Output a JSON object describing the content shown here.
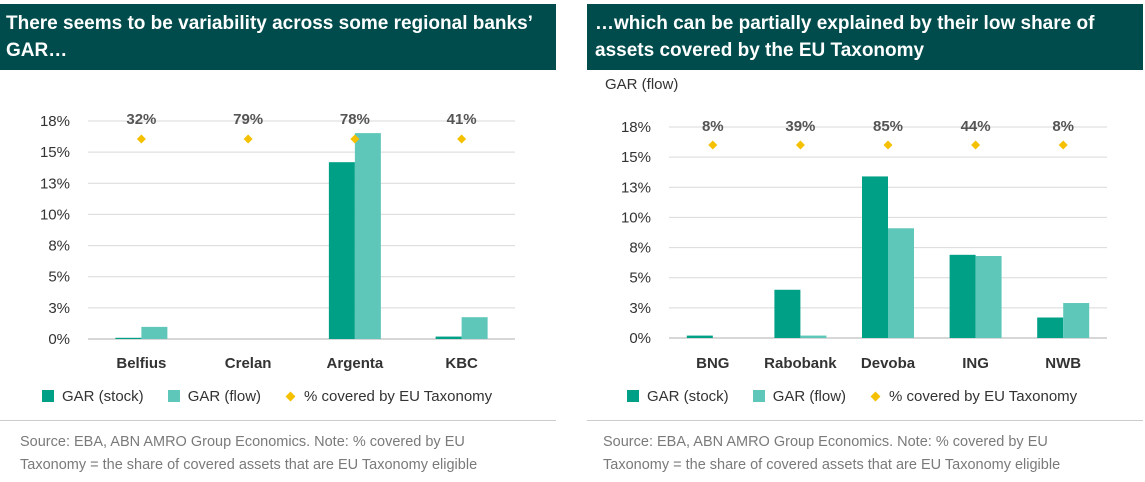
{
  "panels": [
    {
      "title": "There seems to be variability across some regional banks’ GAR…",
      "ylabel": "",
      "source": [
        "Source: EBA, ABN AMRO Group Economics. Note: % covered by EU",
        "Taxonomy =   the share of covered assets that are EU Taxonomy eligible"
      ],
      "legend": {
        "stock": "GAR (stock)",
        "flow": "GAR (flow)",
        "coverage": "% covered by EU Taxonomy"
      }
    },
    {
      "title": "…which can be partially explained by their low share of assets covered by the EU Taxonomy",
      "ylabel": "GAR (flow)",
      "source": [
        "Source: EBA, ABN AMRO Group Economics. Note: % covered by EU",
        "Taxonomy =   the share of covered assets that are EU Taxonomy eligible"
      ],
      "legend": {
        "stock": "GAR (stock)",
        "flow": "GAR (flow)",
        "coverage": "% covered by EU Taxonomy"
      }
    }
  ],
  "colors": {
    "stock": "#00a087",
    "flow": "#5ec7b9",
    "coverage": "#f5c000",
    "title_bg": "#004c4c"
  },
  "chart_data": [
    {
      "type": "bar",
      "categories": [
        "Belfius",
        "Crelan",
        "Argenta",
        "KBC"
      ],
      "series": [
        {
          "name": "GAR (stock)",
          "values": [
            0.1,
            0.0,
            14.6,
            0.2
          ]
        },
        {
          "name": "GAR (flow)",
          "values": [
            1.0,
            0.0,
            17.0,
            1.8
          ]
        }
      ],
      "coverage": {
        "name": "% covered by EU Taxonomy",
        "labels": [
          "32%",
          "79%",
          "78%",
          "41%"
        ]
      },
      "yticks": [
        "0%",
        "3%",
        "5%",
        "8%",
        "10%",
        "13%",
        "15%",
        "18%"
      ],
      "ylim": [
        0,
        18
      ],
      "legend_position": "bottom"
    },
    {
      "type": "bar",
      "categories": [
        "BNG",
        "Rabobank",
        "Devoba",
        "ING",
        "NWB"
      ],
      "series": [
        {
          "name": "GAR (stock)",
          "values": [
            0.2,
            4.0,
            13.4,
            6.9,
            1.7
          ]
        },
        {
          "name": "GAR (flow)",
          "values": [
            0.0,
            0.2,
            9.1,
            6.8,
            2.9
          ]
        }
      ],
      "coverage": {
        "name": "% covered by EU Taxonomy",
        "labels": [
          "8%",
          "39%",
          "85%",
          "44%",
          "8%"
        ]
      },
      "yticks": [
        "0%",
        "3%",
        "5%",
        "8%",
        "10%",
        "13%",
        "15%",
        "18%"
      ],
      "ylim": [
        0,
        17.5
      ],
      "ylabel": "GAR (flow)",
      "legend_position": "bottom"
    }
  ]
}
